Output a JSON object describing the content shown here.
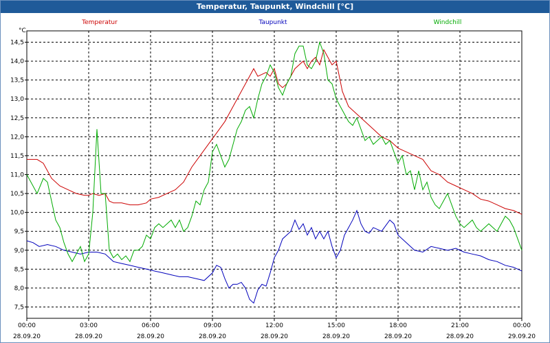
{
  "window": {
    "title": "Temperatur, Taupunkt, Windchill [°C]"
  },
  "colors": {
    "temperatur": "#cc0000",
    "taupunkt": "#0000bb",
    "windchill": "#00aa00",
    "grid": "#000000"
  },
  "chart_data": {
    "type": "line",
    "title": "Temperatur, Taupunkt, Windchill [°C]",
    "ylabel": "°C",
    "ylim": [
      7.2,
      14.8
    ],
    "yticks": [
      "7,5",
      "8,0",
      "8,5",
      "9,0",
      "9,5",
      "10,0",
      "10,5",
      "11,0",
      "11,5",
      "12,0",
      "12,5",
      "13,0",
      "13,5",
      "14,0",
      "14,5"
    ],
    "xlim": [
      0,
      24
    ],
    "xticks": [
      {
        "time": "00:00",
        "date": "28.09.20"
      },
      {
        "time": "03:00",
        "date": "28.09.20"
      },
      {
        "time": "06:00",
        "date": "28.09.20"
      },
      {
        "time": "09:00",
        "date": "28.09.20"
      },
      {
        "time": "12:00",
        "date": "28.09.20"
      },
      {
        "time": "15:00",
        "date": "28.09.20"
      },
      {
        "time": "18:00",
        "date": "28.09.20"
      },
      {
        "time": "21:00",
        "date": "28.09.20"
      },
      {
        "time": "00:00",
        "date": "29.09.20"
      }
    ],
    "grid": true,
    "legend_position": "top",
    "series": [
      {
        "name": "Temperatur",
        "color": "#cc0000",
        "x": [
          0,
          0.5,
          0.8,
          1.2,
          1.6,
          2,
          2.4,
          2.8,
          3,
          3.2,
          3.5,
          3.8,
          4,
          4.2,
          4.6,
          5,
          5.4,
          5.8,
          6,
          6.4,
          6.8,
          7.2,
          7.6,
          8,
          8.4,
          8.8,
          9.2,
          9.6,
          10,
          10.4,
          10.8,
          11,
          11.2,
          11.4,
          11.6,
          11.8,
          12,
          12.2,
          12.4,
          12.6,
          12.8,
          13,
          13.2,
          13.4,
          13.6,
          13.8,
          14,
          14.2,
          14.4,
          14.6,
          14.8,
          15,
          15.3,
          15.6,
          16,
          16.4,
          16.8,
          17.2,
          17.6,
          18,
          18.4,
          18.8,
          19.2,
          19.6,
          20,
          20.4,
          20.8,
          21.2,
          21.6,
          22,
          22.4,
          22.8,
          23.2,
          23.6,
          24
        ],
        "values": [
          11.4,
          11.4,
          11.3,
          10.9,
          10.7,
          10.6,
          10.5,
          10.45,
          10.45,
          10.5,
          10.45,
          10.5,
          10.3,
          10.25,
          10.25,
          10.2,
          10.2,
          10.25,
          10.35,
          10.4,
          10.5,
          10.6,
          10.8,
          11.2,
          11.5,
          11.8,
          12.1,
          12.4,
          12.8,
          13.2,
          13.6,
          13.8,
          13.6,
          13.65,
          13.7,
          13.6,
          13.8,
          13.4,
          13.3,
          13.4,
          13.6,
          13.8,
          13.9,
          14.0,
          13.8,
          14.0,
          14.1,
          13.9,
          14.3,
          14.1,
          13.9,
          14.0,
          13.2,
          12.8,
          12.6,
          12.4,
          12.2,
          12.0,
          11.9,
          11.7,
          11.6,
          11.5,
          11.4,
          11.1,
          11.0,
          10.8,
          10.7,
          10.6,
          10.5,
          10.35,
          10.3,
          10.2,
          10.1,
          10.05,
          9.95
        ]
      },
      {
        "name": "Taupunkt",
        "color": "#0000bb",
        "x": [
          0,
          0.3,
          0.6,
          1,
          1.4,
          1.8,
          2.2,
          2.6,
          3,
          3.4,
          3.8,
          4.2,
          4.6,
          5,
          5.4,
          5.8,
          6.2,
          6.6,
          7,
          7.4,
          7.8,
          8.2,
          8.6,
          9,
          9.2,
          9.4,
          9.6,
          9.8,
          10,
          10.2,
          10.4,
          10.6,
          10.8,
          11,
          11.2,
          11.4,
          11.6,
          11.8,
          12,
          12.2,
          12.4,
          12.6,
          12.8,
          13,
          13.2,
          13.4,
          13.6,
          13.8,
          14,
          14.2,
          14.4,
          14.6,
          14.8,
          15,
          15.2,
          15.4,
          15.6,
          15.8,
          16,
          16.2,
          16.4,
          16.6,
          16.8,
          17,
          17.2,
          17.4,
          17.6,
          17.8,
          18,
          18.4,
          18.8,
          19.2,
          19.6,
          20,
          20.4,
          20.8,
          21.2,
          21.6,
          22,
          22.4,
          22.8,
          23.2,
          23.6,
          24
        ],
        "values": [
          9.25,
          9.2,
          9.1,
          9.15,
          9.1,
          9.0,
          8.95,
          8.9,
          8.95,
          8.95,
          8.9,
          8.7,
          8.65,
          8.6,
          8.55,
          8.5,
          8.45,
          8.4,
          8.35,
          8.3,
          8.3,
          8.25,
          8.2,
          8.4,
          8.6,
          8.55,
          8.25,
          8.0,
          8.1,
          8.1,
          8.15,
          8.0,
          7.7,
          7.6,
          7.95,
          8.1,
          8.05,
          8.4,
          8.8,
          9.0,
          9.3,
          9.4,
          9.5,
          9.8,
          9.55,
          9.7,
          9.4,
          9.6,
          9.3,
          9.5,
          9.3,
          9.5,
          9.1,
          8.8,
          9.0,
          9.4,
          9.6,
          9.8,
          10.05,
          9.7,
          9.5,
          9.45,
          9.6,
          9.55,
          9.5,
          9.65,
          9.8,
          9.7,
          9.4,
          9.2,
          9.0,
          8.95,
          9.1,
          9.05,
          9.0,
          9.05,
          8.95,
          8.9,
          8.85,
          8.75,
          8.7,
          8.6,
          8.55,
          8.45
        ]
      },
      {
        "name": "Windchill",
        "color": "#00aa00",
        "x": [
          0,
          0.2,
          0.5,
          0.8,
          1,
          1.2,
          1.4,
          1.6,
          1.8,
          2,
          2.2,
          2.4,
          2.6,
          2.8,
          3,
          3.2,
          3.4,
          3.6,
          3.8,
          4,
          4.2,
          4.4,
          4.6,
          4.8,
          5,
          5.2,
          5.4,
          5.6,
          5.8,
          6,
          6.2,
          6.4,
          6.6,
          6.8,
          7,
          7.2,
          7.4,
          7.6,
          7.8,
          8,
          8.2,
          8.4,
          8.6,
          8.8,
          9,
          9.2,
          9.4,
          9.6,
          9.8,
          10,
          10.2,
          10.4,
          10.6,
          10.8,
          11,
          11.2,
          11.4,
          11.6,
          11.8,
          12,
          12.2,
          12.4,
          12.6,
          12.8,
          13,
          13.2,
          13.4,
          13.6,
          13.8,
          14,
          14.2,
          14.4,
          14.6,
          14.8,
          15,
          15.2,
          15.4,
          15.6,
          15.8,
          16,
          16.2,
          16.4,
          16.6,
          16.8,
          17,
          17.2,
          17.4,
          17.6,
          17.8,
          18,
          18.2,
          18.4,
          18.6,
          18.8,
          19,
          19.2,
          19.4,
          19.6,
          19.8,
          20,
          20.2,
          20.4,
          20.6,
          20.8,
          21,
          21.2,
          21.4,
          21.6,
          21.8,
          22,
          22.2,
          22.4,
          22.6,
          22.8,
          23,
          23.2,
          23.4,
          23.6,
          23.8,
          24
        ],
        "values": [
          11.0,
          10.8,
          10.5,
          10.9,
          10.8,
          10.3,
          9.8,
          9.6,
          9.2,
          8.9,
          8.7,
          8.9,
          9.1,
          8.7,
          8.9,
          10.0,
          12.2,
          10.5,
          10.5,
          9.0,
          8.8,
          8.9,
          8.75,
          8.85,
          8.7,
          9.0,
          9.0,
          9.1,
          9.4,
          9.3,
          9.6,
          9.7,
          9.6,
          9.7,
          9.8,
          9.6,
          9.8,
          9.5,
          9.6,
          9.9,
          10.3,
          10.2,
          10.6,
          10.8,
          11.6,
          11.8,
          11.5,
          11.2,
          11.4,
          11.8,
          12.2,
          12.4,
          12.7,
          12.8,
          12.5,
          13.0,
          13.4,
          13.6,
          13.9,
          13.7,
          13.3,
          13.1,
          13.4,
          13.6,
          14.2,
          14.4,
          14.4,
          13.9,
          13.8,
          14.0,
          14.5,
          14.2,
          13.5,
          13.4,
          13.0,
          12.8,
          12.6,
          12.4,
          12.3,
          12.5,
          12.2,
          11.9,
          12.0,
          11.8,
          11.9,
          12.0,
          11.8,
          11.9,
          11.6,
          11.3,
          11.5,
          11.0,
          11.1,
          10.6,
          11.1,
          10.6,
          10.8,
          10.4,
          10.2,
          10.1,
          10.3,
          10.5,
          10.2,
          9.9,
          9.7,
          9.6,
          9.7,
          9.8,
          9.6,
          9.5,
          9.6,
          9.7,
          9.6,
          9.5,
          9.7,
          9.9,
          9.8,
          9.6,
          9.3,
          9.0
        ]
      }
    ]
  }
}
